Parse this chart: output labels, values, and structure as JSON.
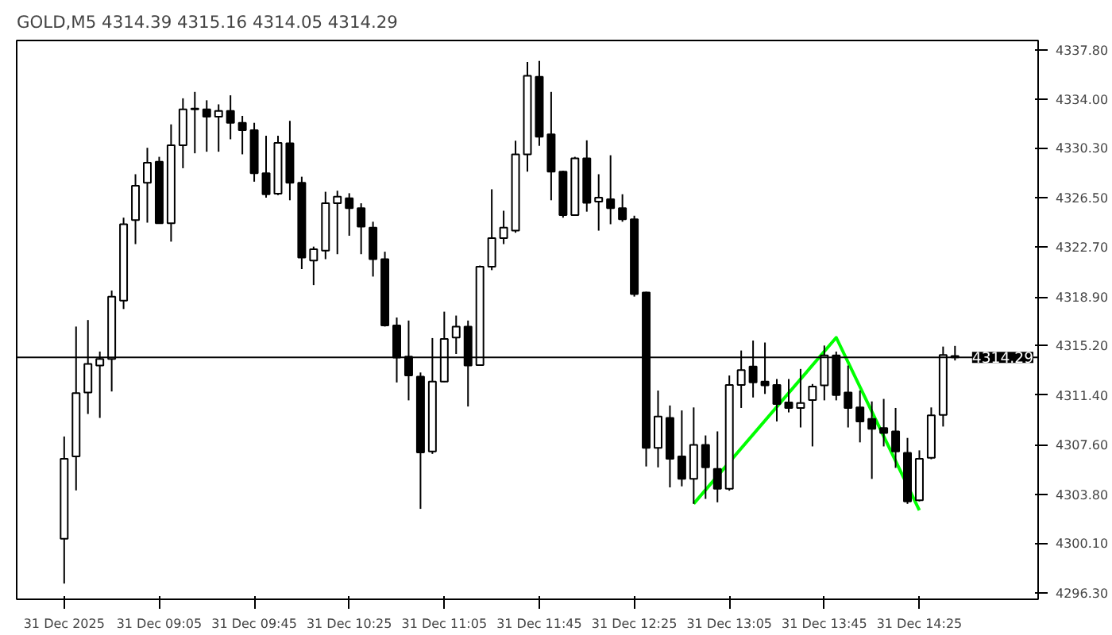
{
  "chart_data": {
    "type": "candlestick",
    "title": "GOLD,M5  4314.39 4315.16 4314.05 4314.29",
    "x": [
      "2025-12-31T08:25",
      "2025-12-31T08:30",
      "2025-12-31T08:35",
      "2025-12-31T08:40",
      "2025-12-31T08:45",
      "2025-12-31T08:50",
      "2025-12-31T08:55",
      "2025-12-31T09:00",
      "2025-12-31T09:05",
      "2025-12-31T09:10",
      "2025-12-31T09:15",
      "2025-12-31T09:20",
      "2025-12-31T09:25",
      "2025-12-31T09:30",
      "2025-12-31T09:35",
      "2025-12-31T09:40",
      "2025-12-31T09:45",
      "2025-12-31T09:50",
      "2025-12-31T09:55",
      "2025-12-31T10:00",
      "2025-12-31T10:05",
      "2025-12-31T10:10",
      "2025-12-31T10:15",
      "2025-12-31T10:20",
      "2025-12-31T10:25",
      "2025-12-31T10:30",
      "2025-12-31T10:35",
      "2025-12-31T10:40",
      "2025-12-31T10:45",
      "2025-12-31T10:50",
      "2025-12-31T10:55",
      "2025-12-31T11:00",
      "2025-12-31T11:05",
      "2025-12-31T11:10",
      "2025-12-31T11:15",
      "2025-12-31T11:20",
      "2025-12-31T11:25",
      "2025-12-31T11:30",
      "2025-12-31T11:35",
      "2025-12-31T11:40",
      "2025-12-31T11:45",
      "2025-12-31T11:50",
      "2025-12-31T11:55",
      "2025-12-31T12:00",
      "2025-12-31T12:05",
      "2025-12-31T12:10",
      "2025-12-31T12:15",
      "2025-12-31T12:20",
      "2025-12-31T12:25",
      "2025-12-31T12:30",
      "2025-12-31T12:35",
      "2025-12-31T12:40",
      "2025-12-31T12:45",
      "2025-12-31T12:50",
      "2025-12-31T12:55",
      "2025-12-31T13:00",
      "2025-12-31T13:05",
      "2025-12-31T13:10",
      "2025-12-31T13:15",
      "2025-12-31T13:20",
      "2025-12-31T13:25",
      "2025-12-31T13:30",
      "2025-12-31T13:35",
      "2025-12-31T13:40",
      "2025-12-31T13:45",
      "2025-12-31T13:50",
      "2025-12-31T13:55",
      "2025-12-31T14:00",
      "2025-12-31T14:05",
      "2025-12-31T14:10",
      "2025-12-31T14:15",
      "2025-12-31T14:20",
      "2025-12-31T14:25",
      "2025-12-31T14:30",
      "2025-12-31T14:35",
      "2025-12-31T14:40"
    ],
    "ohlc": [
      [
        4300.42,
        4308.24,
        4297.0,
        4306.53
      ],
      [
        4306.72,
        4316.64,
        4304.12,
        4311.56
      ],
      [
        4311.6,
        4317.14,
        4309.96,
        4313.78
      ],
      [
        4313.66,
        4314.73,
        4309.66,
        4314.16
      ],
      [
        4314.16,
        4319.39,
        4311.68,
        4318.93
      ],
      [
        4318.62,
        4324.96,
        4317.98,
        4324.46
      ],
      [
        4324.77,
        4328.28,
        4322.94,
        4327.4
      ],
      [
        4327.63,
        4330.3,
        4324.58,
        4329.16
      ],
      [
        4329.23,
        4329.61,
        4324.54,
        4324.54
      ],
      [
        4324.54,
        4332.09,
        4323.13,
        4330.49
      ],
      [
        4330.49,
        4334.08,
        4328.74,
        4333.24
      ],
      [
        4333.24,
        4334.57,
        4329.88,
        4333.3
      ],
      [
        4333.24,
        4333.93,
        4330.0,
        4332.67
      ],
      [
        4332.67,
        4333.62,
        4330.0,
        4333.12
      ],
      [
        4333.12,
        4334.31,
        4330.95,
        4332.21
      ],
      [
        4332.21,
        4332.74,
        4329.8,
        4331.64
      ],
      [
        4331.64,
        4332.21,
        4327.71,
        4328.36
      ],
      [
        4328.36,
        4331.22,
        4326.49,
        4326.75
      ],
      [
        4326.79,
        4331.22,
        4326.68,
        4330.68
      ],
      [
        4330.64,
        4332.36,
        4326.29,
        4327.63
      ],
      [
        4327.63,
        4328.09,
        4321.03,
        4321.91
      ],
      [
        4321.68,
        4322.75,
        4319.81,
        4322.55
      ],
      [
        4322.44,
        4326.94,
        4321.79,
        4326.06
      ],
      [
        4326.06,
        4327.02,
        4322.17,
        4326.56
      ],
      [
        4326.45,
        4326.83,
        4323.58,
        4325.68
      ],
      [
        4325.68,
        4326.06,
        4322.17,
        4324.27
      ],
      [
        4324.2,
        4324.65,
        4320.46,
        4321.79
      ],
      [
        4321.79,
        4322.36,
        4316.64,
        4316.72
      ],
      [
        4316.72,
        4317.33,
        4312.37,
        4314.27
      ],
      [
        4314.35,
        4317.1,
        4311.0,
        4312.9
      ],
      [
        4312.82,
        4313.13,
        4302.71,
        4307.02
      ],
      [
        4307.1,
        4315.76,
        4306.91,
        4312.44
      ],
      [
        4312.44,
        4317.78,
        4312.4,
        4315.69
      ],
      [
        4315.8,
        4317.48,
        4314.54,
        4316.64
      ],
      [
        4316.64,
        4317.1,
        4310.53,
        4313.66
      ],
      [
        4313.7,
        4321.3,
        4313.7,
        4321.22
      ],
      [
        4321.22,
        4327.13,
        4320.95,
        4323.39
      ],
      [
        4323.39,
        4325.49,
        4322.94,
        4324.2
      ],
      [
        4323.97,
        4330.84,
        4323.81,
        4329.8
      ],
      [
        4329.8,
        4336.86,
        4328.47,
        4335.8
      ],
      [
        4335.72,
        4336.94,
        4330.45,
        4331.14
      ],
      [
        4331.33,
        4334.57,
        4326.29,
        4328.47
      ],
      [
        4328.47,
        4328.55,
        4324.96,
        4325.15
      ],
      [
        4325.15,
        4329.61,
        4325.11,
        4329.5
      ],
      [
        4329.5,
        4330.87,
        4325.42,
        4326.1
      ],
      [
        4326.18,
        4328.28,
        4323.97,
        4326.49
      ],
      [
        4326.37,
        4329.73,
        4324.46,
        4325.68
      ],
      [
        4325.68,
        4326.75,
        4324.65,
        4324.84
      ],
      [
        4324.84,
        4325.11,
        4318.93,
        4319.12
      ],
      [
        4319.24,
        4319.3,
        4305.95,
        4307.37
      ],
      [
        4307.37,
        4311.75,
        4305.88,
        4309.77
      ],
      [
        4309.66,
        4310.61,
        4304.35,
        4306.53
      ],
      [
        4306.72,
        4310.23,
        4304.43,
        4305.0
      ],
      [
        4305.0,
        4310.46,
        4303.09,
        4307.6
      ],
      [
        4307.6,
        4308.32,
        4303.47,
        4305.88
      ],
      [
        4305.76,
        4308.63,
        4303.21,
        4304.24
      ],
      [
        4304.24,
        4312.9,
        4304.1,
        4312.17
      ],
      [
        4312.17,
        4314.81,
        4310.42,
        4313.32
      ],
      [
        4313.59,
        4315.57,
        4311.22,
        4312.37
      ],
      [
        4312.44,
        4315.42,
        4311.49,
        4312.14
      ],
      [
        4312.17,
        4312.63,
        4309.39,
        4310.72
      ],
      [
        4310.84,
        4312.63,
        4310.08,
        4310.42
      ],
      [
        4310.42,
        4313.4,
        4308.93,
        4310.8
      ],
      [
        4311.03,
        4312.25,
        4307.48,
        4312.06
      ],
      [
        4312.14,
        4315.19,
        4311.0,
        4314.43
      ],
      [
        4314.43,
        4314.73,
        4311.0,
        4311.41
      ],
      [
        4311.6,
        4313.66,
        4308.93,
        4310.42
      ],
      [
        4310.46,
        4311.75,
        4307.79,
        4309.39
      ],
      [
        4309.58,
        4310.92,
        4305.0,
        4308.82
      ],
      [
        4308.89,
        4311.11,
        4307.48,
        4308.51
      ],
      [
        4308.63,
        4310.42,
        4305.84,
        4307.1
      ],
      [
        4306.99,
        4308.13,
        4303.09,
        4303.28
      ],
      [
        4303.36,
        4307.18,
        4303.28,
        4306.53
      ],
      [
        4306.61,
        4310.46,
        4306.5,
        4309.85
      ],
      [
        4309.89,
        4315.11,
        4309.0,
        4314.46
      ],
      [
        4314.39,
        4315.16,
        4314.05,
        4314.29
      ]
    ],
    "series": [
      {
        "type": "line",
        "color": "#00ff00",
        "x": [
          "2025-12-31T12:50",
          "2025-12-31T13:50",
          "2025-12-31T14:25"
        ],
        "values": [
          4303.1,
          4315.8,
          4302.6
        ]
      }
    ],
    "xlim": [
      "2025-12-31T08:05",
      "2025-12-31T15:15"
    ],
    "xticks": [
      {
        "value": "2025-12-31T08:25",
        "label": "31 Dec 2025"
      },
      {
        "value": "2025-12-31T09:05",
        "label": "31 Dec 09:05"
      },
      {
        "value": "2025-12-31T09:45",
        "label": "31 Dec 09:45"
      },
      {
        "value": "2025-12-31T10:25",
        "label": "31 Dec 10:25"
      },
      {
        "value": "2025-12-31T11:05",
        "label": "31 Dec 11:05"
      },
      {
        "value": "2025-12-31T11:45",
        "label": "31 Dec 11:45"
      },
      {
        "value": "2025-12-31T12:25",
        "label": "31 Dec 12:25"
      },
      {
        "value": "2025-12-31T13:05",
        "label": "31 Dec 13:05"
      },
      {
        "value": "2025-12-31T13:45",
        "label": "31 Dec 13:45"
      },
      {
        "value": "2025-12-31T14:25",
        "label": "31 Dec 14:25"
      }
    ],
    "ylim": [
      4295.8,
      4338.5
    ],
    "yticks": [
      {
        "value": 4296.3,
        "label": "4296.30"
      },
      {
        "value": 4300.1,
        "label": "4300.10"
      },
      {
        "value": 4303.8,
        "label": "4303.80"
      },
      {
        "value": 4307.6,
        "label": "4307.60"
      },
      {
        "value": 4311.4,
        "label": "4311.40"
      },
      {
        "value": 4315.2,
        "label": "4315.20"
      },
      {
        "value": 4318.9,
        "label": "4318.90"
      },
      {
        "value": 4322.7,
        "label": "4322.70"
      },
      {
        "value": 4326.5,
        "label": "4326.50"
      },
      {
        "value": 4330.3,
        "label": "4330.30"
      },
      {
        "value": 4334.0,
        "label": "4334.00"
      },
      {
        "value": 4337.8,
        "label": "4337.80"
      }
    ],
    "ref_lines": [
      {
        "axis": "y",
        "value": 4314.29,
        "label": "4314.29",
        "color": "#000000"
      }
    ],
    "grid": false
  }
}
